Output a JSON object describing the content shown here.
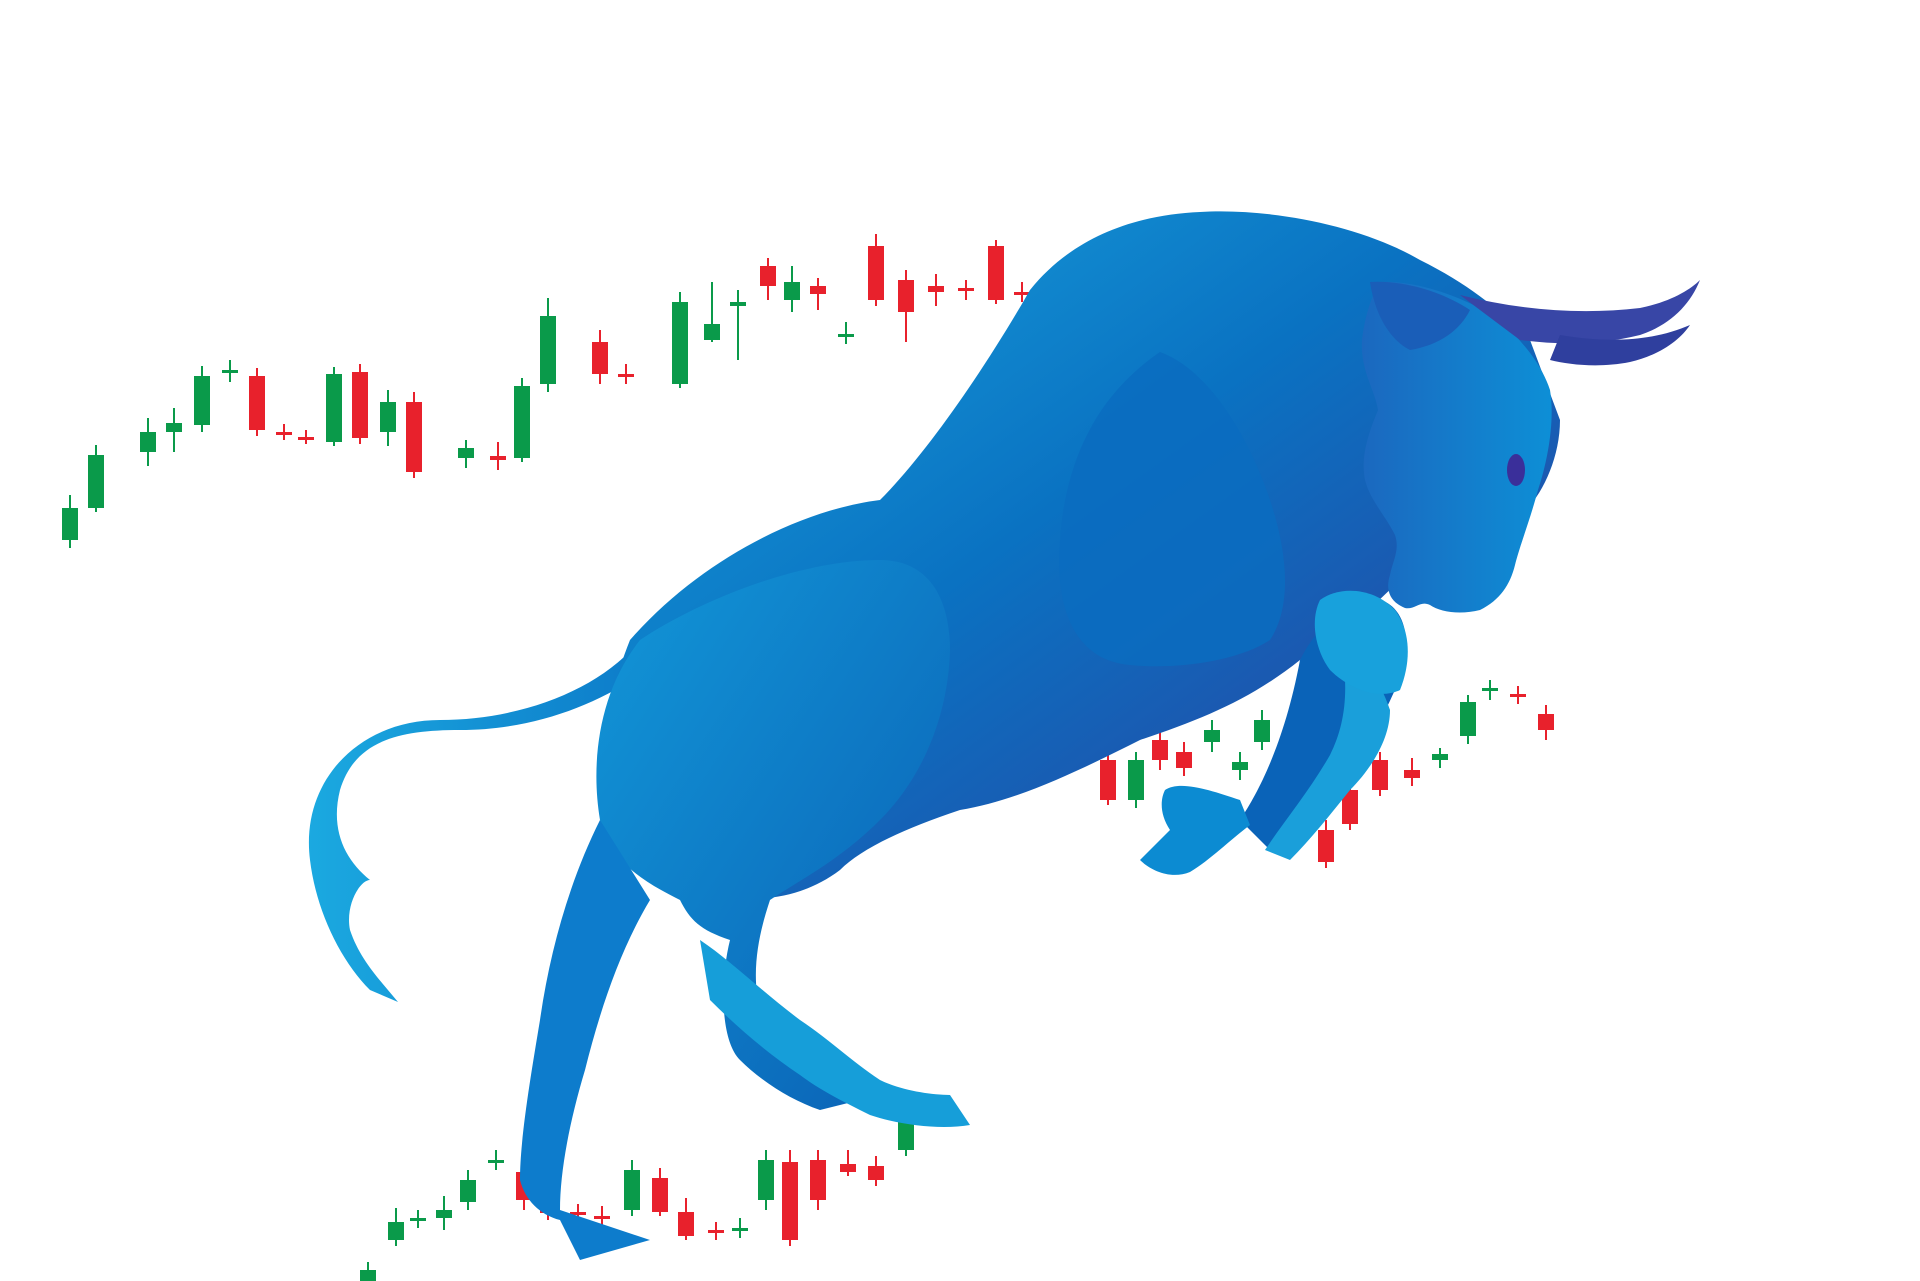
{
  "colors": {
    "background": "#ffffff",
    "bullish": "#0a9a4a",
    "bearish": "#e8212c",
    "bull_light": "#1aa3dc",
    "bull_mid": "#0a73c4",
    "bull_dark": "#2e3d9c",
    "eye": "#3a2f9a"
  },
  "illustration": {
    "subject": "bull-icon",
    "motif": "candlestick-chart-icon"
  },
  "candles_upper": [
    {
      "o": 415,
      "c": 440,
      "h": 400,
      "l": 447
    },
    {
      "o": 398,
      "c": 383,
      "h": 375,
      "l": 415
    },
    {
      "o": 386,
      "c": 389,
      "h": 379,
      "l": 395
    },
    {
      "o": 367,
      "c": 352,
      "h": 347,
      "l": 375
    },
    {
      "o": 343,
      "c": 335,
      "h": 327,
      "l": 362
    },
    {
      "o": 302,
      "c": 302,
      "h": 292,
      "l": 312
    },
    {
      "o": 290,
      "c": 287,
      "h": 281,
      "l": 296
    },
    {
      "o": 315,
      "c": 313,
      "h": 306,
      "l": 320
    },
    {
      "o": 308,
      "c": 305,
      "h": 298,
      "l": 313
    },
    {
      "o": 348,
      "c": 303,
      "h": 297,
      "l": 385
    },
    {
      "o": 331,
      "c": 352,
      "h": 315,
      "l": 362
    },
    {
      "o": 339,
      "c": 372,
      "h": 322,
      "l": 383
    },
    {
      "o": 312,
      "c": 308,
      "h": 300,
      "l": 320
    },
    {
      "o": 300,
      "c": 314,
      "h": 292,
      "l": 320
    },
    {
      "o": 310,
      "c": 310,
      "h": 300,
      "l": 318
    },
    {
      "o": 318,
      "c": 328,
      "h": 306,
      "l": 338
    },
    {
      "o": 304,
      "c": 345,
      "h": 288,
      "l": 355
    },
    {
      "o": 323,
      "c": 318,
      "h": 311,
      "l": 333
    },
    {
      "o": 317,
      "c": 316,
      "h": 309,
      "l": 324
    },
    {
      "o": 346,
      "c": 363,
      "h": 330,
      "l": 372
    },
    {
      "o": 346,
      "c": 350,
      "h": 335,
      "l": 359
    },
    {
      "o": 387,
      "c": 381,
      "h": 371,
      "l": 396
    },
    {
      "o": 380,
      "c": 382,
      "h": 371,
      "l": 391
    },
    {
      "o": 384,
      "c": 385,
      "h": 378,
      "l": 392
    },
    {
      "o": 362,
      "c": 356,
      "h": 347,
      "l": 370
    },
    {
      "o": 345,
      "c": 339,
      "h": 333,
      "l": 351
    },
    {
      "o": 335,
      "c": 335,
      "h": 328,
      "l": 342
    },
    {
      "o": 380,
      "c": 400,
      "h": 364,
      "l": 408
    },
    {
      "o": 418,
      "c": 418,
      "h": 410,
      "l": 426
    },
    {
      "o": 427,
      "c": 423,
      "h": 418,
      "l": 432
    }
  ],
  "candles_lower": [
    {
      "o": 1281,
      "c": 1268,
      "h": 1262,
      "l": 1286
    }
  ]
}
